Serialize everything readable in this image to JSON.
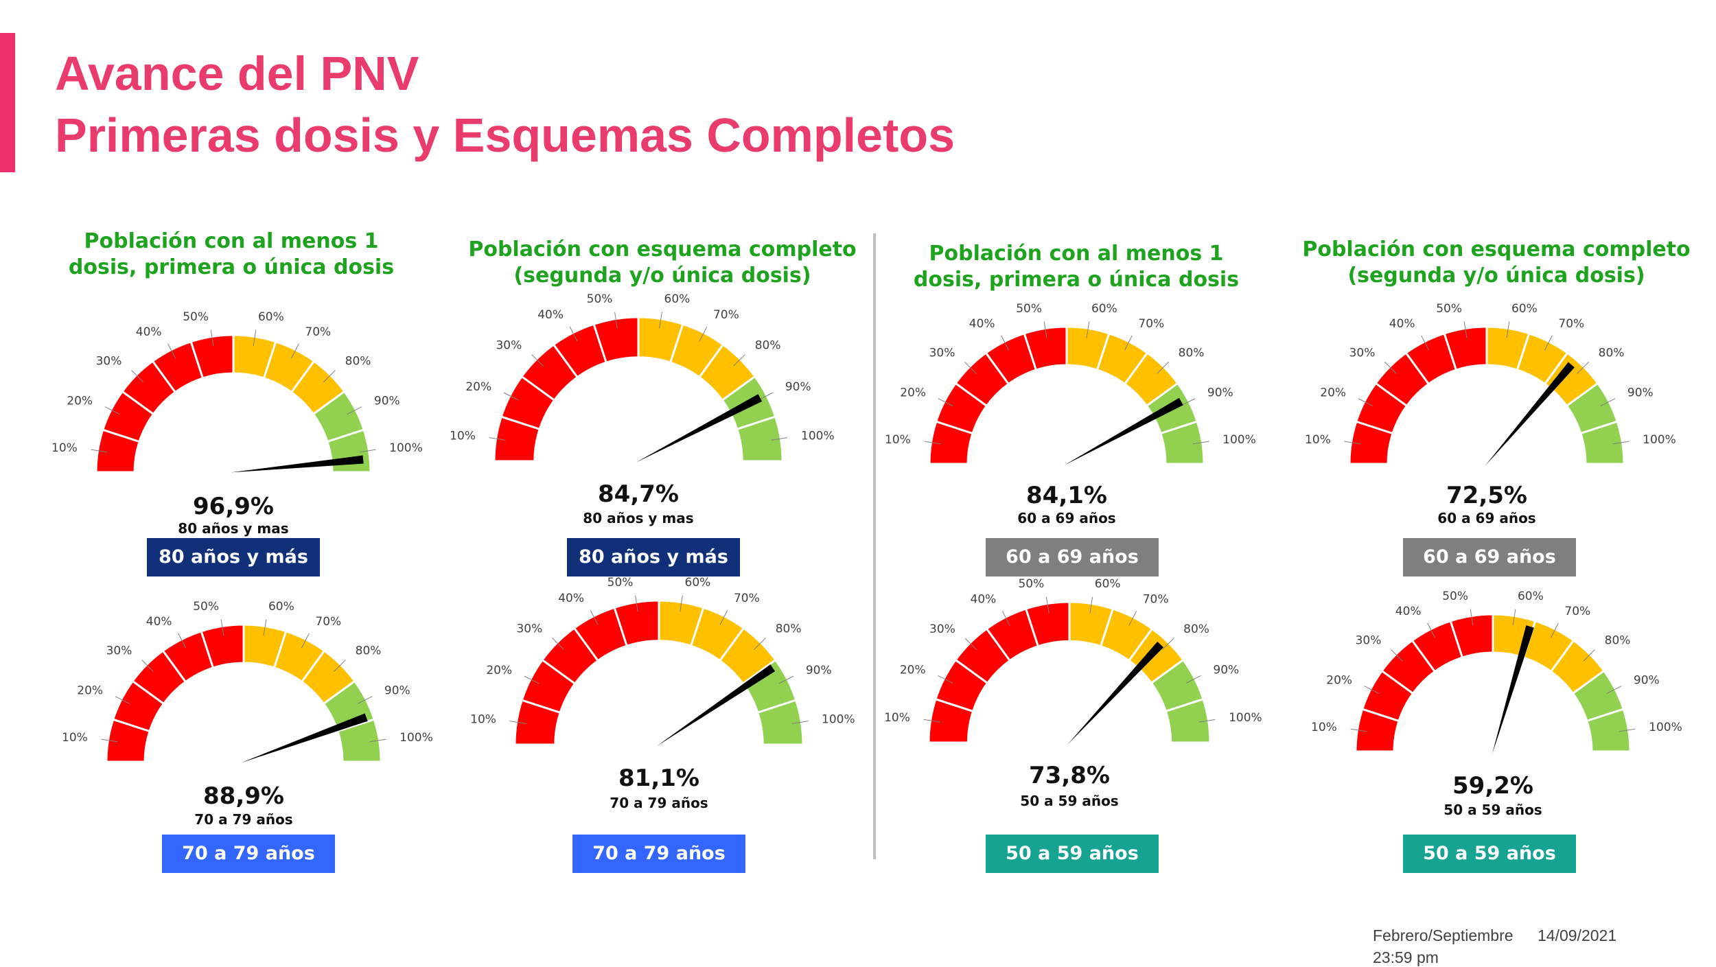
{
  "title_line1": "Avance del PNV",
  "title_line2": "Primeras dosis y Esquemas Completos",
  "column_headers": [
    {
      "line1": "Población con al menos 1",
      "line2": "dosis, primera o única dosis"
    },
    {
      "line1": "Población con esquema completo",
      "line2": "(segunda y/o única dosis)"
    },
    {
      "line1": "Población con al menos 1",
      "line2": "dosis, primera o única dosis"
    },
    {
      "line1": "Población con esquema completo",
      "line2": "(segunda y/o única dosis)"
    }
  ],
  "gauge_tick_labels": [
    "10%",
    "20%",
    "30%",
    "40%",
    "50%",
    "60%",
    "70%",
    "80%",
    "90%",
    "100%"
  ],
  "colors": {
    "red": "#ff0000",
    "yellow": "#ffc000",
    "green": "#92d050",
    "title": "#ea3c6c",
    "header_green": "#1ea31e",
    "badge_navy": "#12307a",
    "badge_blue": "#3366ff",
    "badge_gray": "#7f7f7f",
    "badge_teal": "#16a391"
  },
  "chart_data": [
    {
      "type": "gauge",
      "value": 96.9,
      "value_label": "96,9%",
      "group_label": "80 años y mas",
      "badge": "80 años y más",
      "badge_color": "#12307a",
      "range": [
        0,
        100
      ]
    },
    {
      "type": "gauge",
      "value": 84.7,
      "value_label": "84,7%",
      "group_label": "80 años y mas",
      "badge": "80 años y más",
      "badge_color": "#12307a",
      "range": [
        0,
        100
      ]
    },
    {
      "type": "gauge",
      "value": 84.1,
      "value_label": "84,1%",
      "group_label": "60 a 69 años",
      "badge": "60 a 69 años",
      "badge_color": "#7f7f7f",
      "range": [
        0,
        100
      ]
    },
    {
      "type": "gauge",
      "value": 72.5,
      "value_label": "72,5%",
      "group_label": "60 a 69 años",
      "badge": "60 a 69 años",
      "badge_color": "#7f7f7f",
      "range": [
        0,
        100
      ]
    },
    {
      "type": "gauge",
      "value": 88.9,
      "value_label": "88,9%",
      "group_label": "70 a 79 años",
      "badge": "70 a 79 años",
      "badge_color": "#3366ff",
      "range": [
        0,
        100
      ]
    },
    {
      "type": "gauge",
      "value": 81.1,
      "value_label": "81,1%",
      "group_label": "70 a 79 años",
      "badge": "70 a 79 años",
      "badge_color": "#3366ff",
      "range": [
        0,
        100
      ]
    },
    {
      "type": "gauge",
      "value": 73.8,
      "value_label": "73,8%",
      "group_label": "50 a 59 años",
      "badge": "50 a 59 años",
      "badge_color": "#16a391",
      "range": [
        0,
        100
      ]
    },
    {
      "type": "gauge",
      "value": 59.2,
      "value_label": "59,2%",
      "group_label": "50 a 59 años",
      "badge": "50 a 59 años",
      "badge_color": "#16a391",
      "range": [
        0,
        100
      ]
    }
  ],
  "footer": {
    "period": "Febrero/Septiembre",
    "date": "14/09/2021",
    "time": "23:59 pm"
  }
}
